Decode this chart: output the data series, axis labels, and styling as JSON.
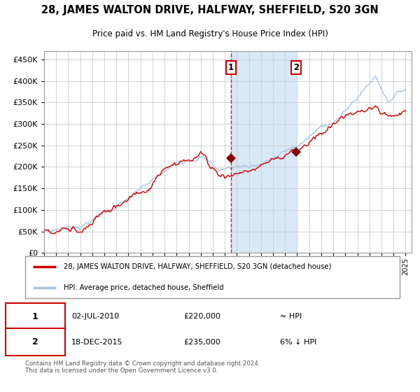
{
  "title": "28, JAMES WALTON DRIVE, HALFWAY, SHEFFIELD, S20 3GN",
  "subtitle": "Price paid vs. HM Land Registry's House Price Index (HPI)",
  "legend_line1": "28, JAMES WALTON DRIVE, HALFWAY, SHEFFIELD, S20 3GN (detached house)",
  "legend_line2": "HPI: Average price, detached house, Sheffield",
  "transaction1_date": "02-JUL-2010",
  "transaction1_price": 220000,
  "transaction1_label": "≈ HPI",
  "transaction2_date": "18-DEC-2015",
  "transaction2_price": 235000,
  "transaction2_label": "6% ↓ HPI",
  "footer": "Contains HM Land Registry data © Crown copyright and database right 2024.\nThis data is licensed under the Open Government Licence v3.0.",
  "hpi_color": "#aac4e0",
  "price_color": "#cc0000",
  "marker_color": "#880000",
  "vline_color": "#cc0000",
  "shade_color": "#d8e8f5",
  "background_color": "#ffffff",
  "grid_color": "#cccccc",
  "ylim": [
    0,
    470000
  ],
  "yticks": [
    0,
    50000,
    100000,
    150000,
    200000,
    250000,
    300000,
    350000,
    400000,
    450000
  ],
  "t1": 2010.5,
  "t2": 2015.917,
  "p1": 220000,
  "p2": 235000
}
